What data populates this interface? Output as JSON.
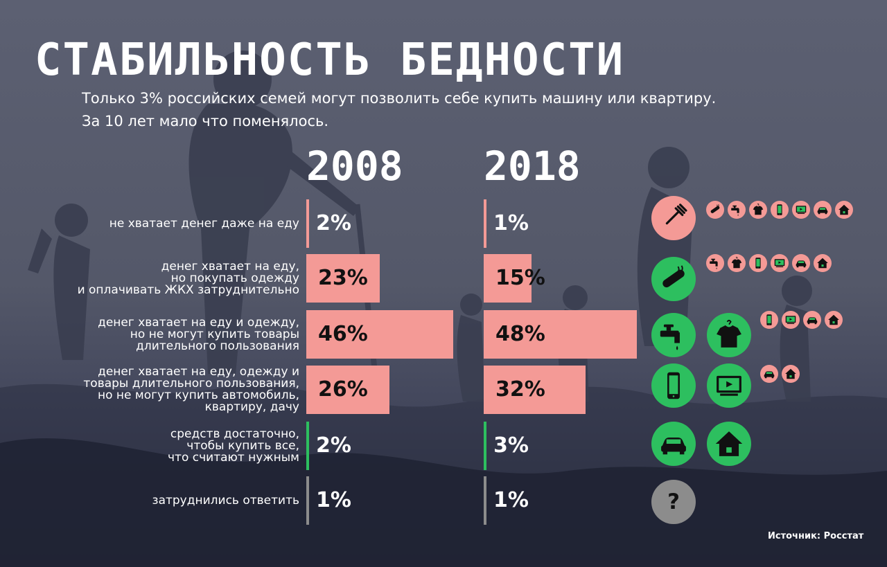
{
  "title": "СТАБИЛЬНОСТЬ БЕДНОСТИ",
  "subtitle": [
    "Только 3% российских семей могут позволить себе купить машину или квартиру.",
    "За 10 лет мало что поменялось."
  ],
  "source": "Источник: Росстат",
  "colors": {
    "pink": "#f49a96",
    "green": "#2dbf5f",
    "gray": "#8c8c8c"
  },
  "chart_data": {
    "type": "bar",
    "orientation": "horizontal",
    "categories": [
      "не хватает денег даже на еду",
      "денег хватает на еду, но покупать одежду и оплачивать ЖКХ затруднительно",
      "денег хватает на еду и одежду, но не могут купить товары длительного пользования",
      "денег хватает на еду, одежду и товары длительного пользования, но не могут купить автомобиль, квартиру, дачу",
      "средств достаточно, чтобы купить все, что считают нужным",
      "затруднились ответить"
    ],
    "category_lines": [
      [
        "не хватает денег даже на еду"
      ],
      [
        "денег хватает на еду,",
        "но покупать одежду",
        "и оплачивать ЖКХ затруднительно"
      ],
      [
        "денег хватает на еду и одежду,",
        "но не могут купить товары",
        "длительного пользования"
      ],
      [
        "денег хватает на еду, одежду и",
        "товары длительного пользования,",
        "но не могут купить автомобиль,",
        "квартиру, дачу"
      ],
      [
        "средств достаточно,",
        "чтобы купить все,",
        "что считают нужным"
      ],
      [
        "затруднились ответить"
      ]
    ],
    "series": [
      {
        "name": "2008",
        "values": [
          2,
          23,
          46,
          26,
          2,
          1
        ],
        "labels": [
          "2%",
          "23%",
          "46%",
          "26%",
          "2%",
          "1%"
        ]
      },
      {
        "name": "2018",
        "values": [
          1,
          15,
          48,
          32,
          3,
          1
        ],
        "labels": [
          "1%",
          "15%",
          "48%",
          "32%",
          "3%",
          "1%"
        ]
      }
    ],
    "bar_colors": [
      "pink",
      "pink",
      "pink",
      "pink",
      "green",
      "gray"
    ],
    "icons": [
      {
        "main": [
          "fork-icon"
        ],
        "main_color": "pink",
        "minis": [
          "sausage-icon",
          "faucet-icon",
          "shirt-icon",
          "phone-icon",
          "tv-icon",
          "car-icon",
          "house-icon"
        ]
      },
      {
        "main": [
          "sausage-icon"
        ],
        "main_color": "green",
        "minis": [
          "faucet-icon",
          "shirt-icon",
          "phone-icon",
          "tv-icon",
          "car-icon",
          "house-icon"
        ]
      },
      {
        "main": [
          "faucet-icon",
          "shirt-icon"
        ],
        "main_color": "green",
        "minis": [
          "phone-icon",
          "tv-icon",
          "car-icon",
          "house-icon"
        ]
      },
      {
        "main": [
          "phone-icon",
          "tv-icon"
        ],
        "main_color": "green",
        "minis": [
          "car-icon",
          "house-icon"
        ]
      },
      {
        "main": [
          "car-icon",
          "house-icon"
        ],
        "main_color": "green",
        "minis": []
      },
      {
        "main": [
          "question-icon"
        ],
        "main_color": "gray",
        "minis": []
      }
    ]
  }
}
